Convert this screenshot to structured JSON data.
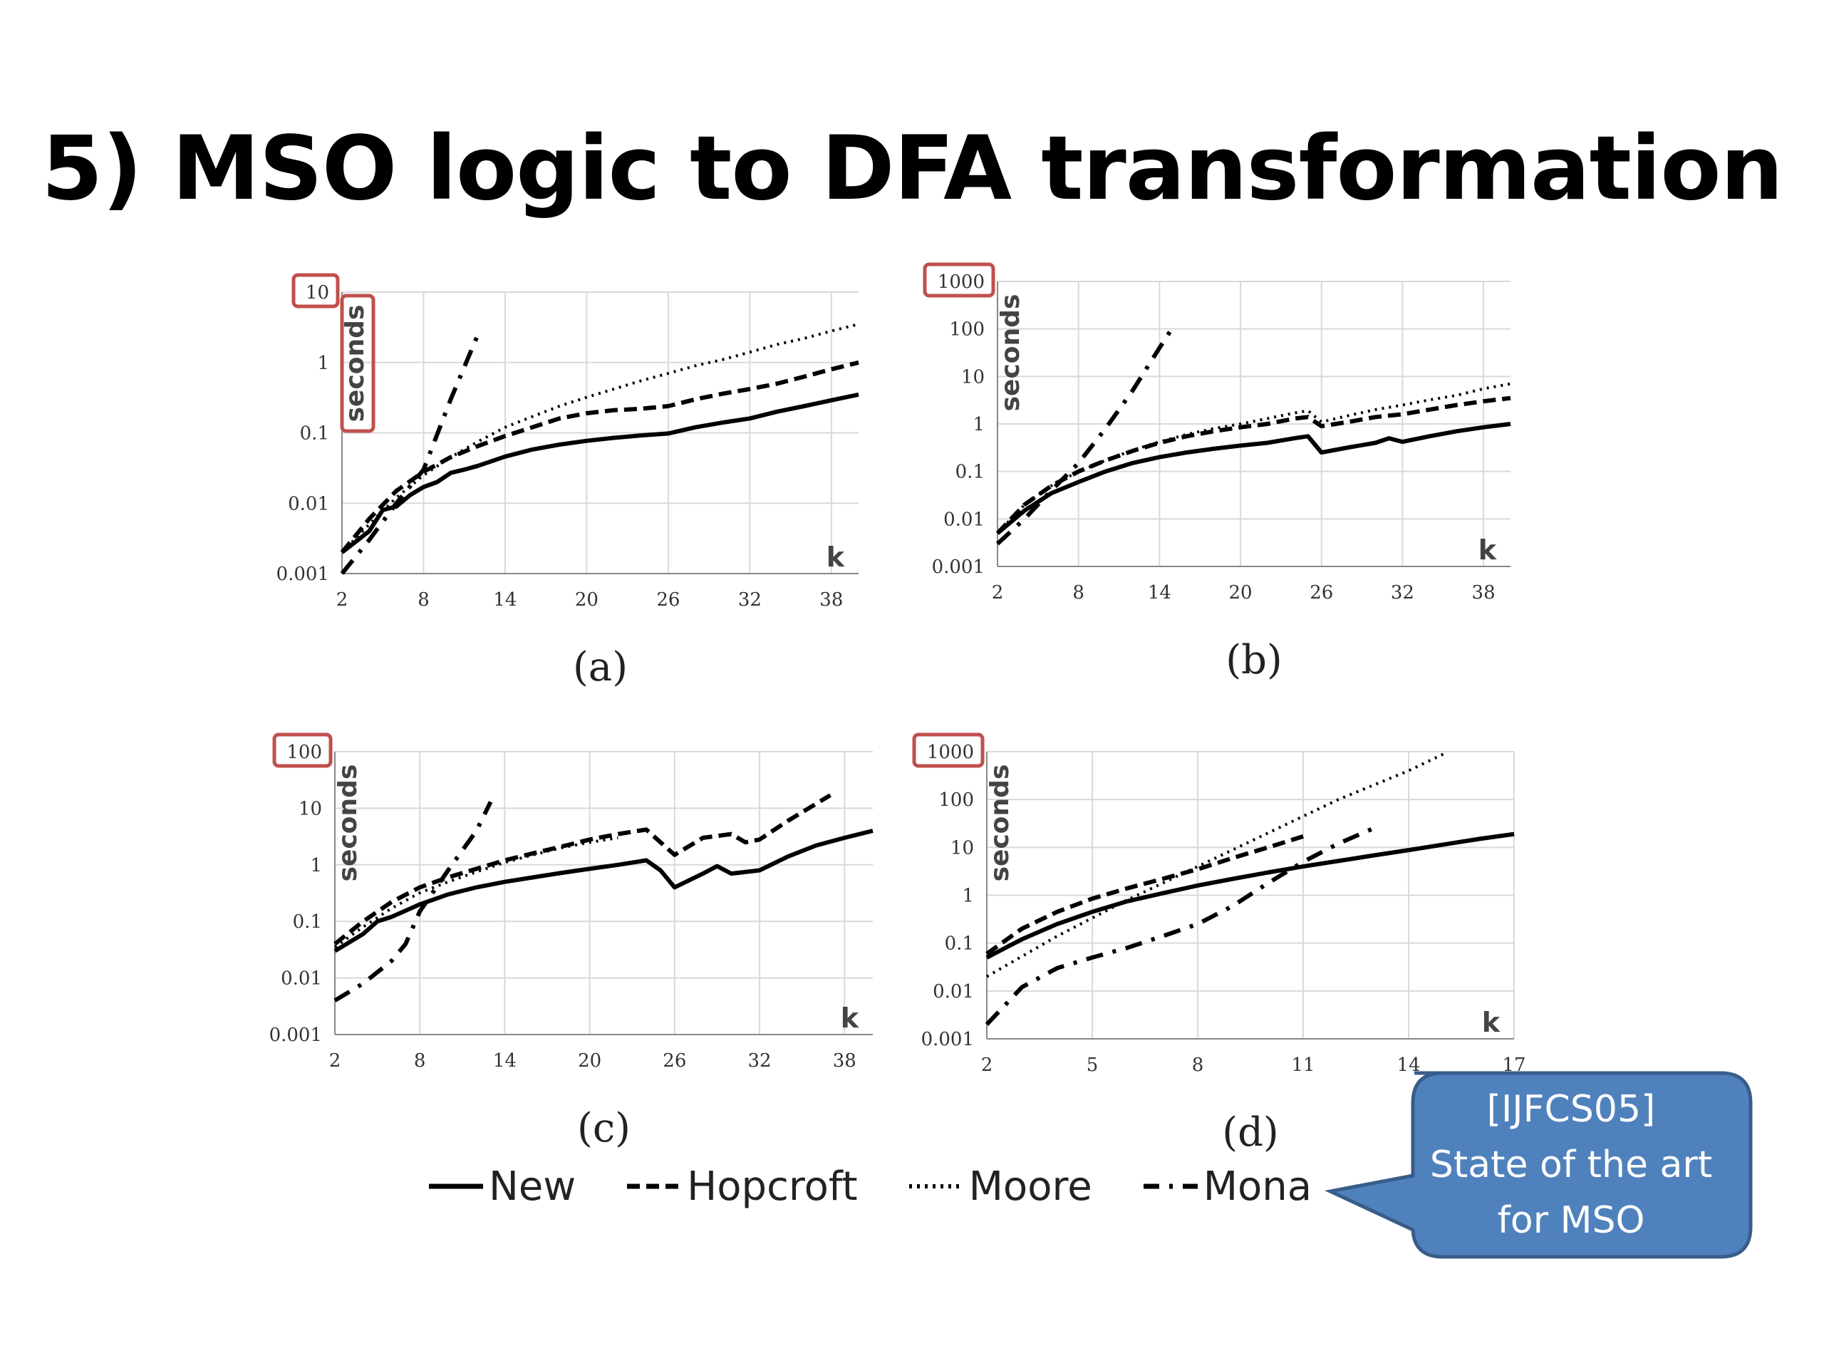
{
  "slide": {
    "title": "5) MSO logic to DFA transformation"
  },
  "legend": [
    {
      "label": "New",
      "style": "solid"
    },
    {
      "label": "Hopcroft",
      "style": "dashed"
    },
    {
      "label": "Moore",
      "style": "dotted"
    },
    {
      "label": "Mona",
      "style": "dashdot"
    }
  ],
  "callout": {
    "lines": [
      "[IJFCS05]",
      "State of the art",
      "for MSO"
    ],
    "color": "#4f81bd",
    "border": "#385d8a"
  },
  "highlight_color": "#c0504d",
  "chart_data": [
    {
      "type": "line",
      "caption": "(a)",
      "ylabel": "seconds",
      "xlabel": "k",
      "yscale": "log",
      "ylim": [
        0.001,
        10
      ],
      "xlim": [
        2,
        40
      ],
      "xticks": [
        "2",
        "8",
        "14",
        "20",
        "26",
        "32",
        "38"
      ],
      "yticks": [
        "0.001",
        "0.01",
        "0.1",
        "1",
        "10"
      ],
      "highlight_top_tick": true,
      "highlight_ylabel": true,
      "grid": true,
      "series": [
        {
          "name": "New",
          "style": "solid",
          "x": [
            2,
            4,
            5,
            6,
            7,
            8,
            9,
            10,
            11,
            12,
            14,
            16,
            18,
            20,
            22,
            24,
            26,
            28,
            30,
            32,
            34,
            36,
            38,
            40
          ],
          "y": [
            0.002,
            0.004,
            0.008,
            0.009,
            0.013,
            0.017,
            0.02,
            0.027,
            0.03,
            0.034,
            0.046,
            0.058,
            0.068,
            0.077,
            0.085,
            0.092,
            0.098,
            0.12,
            0.14,
            0.16,
            0.2,
            0.24,
            0.29,
            0.35
          ]
        },
        {
          "name": "Hopcroft",
          "style": "dashed",
          "x": [
            2,
            4,
            6,
            8,
            10,
            12,
            14,
            16,
            18,
            20,
            22,
            24,
            26,
            28,
            30,
            32,
            34,
            36,
            38,
            40
          ],
          "y": [
            0.002,
            0.006,
            0.015,
            0.028,
            0.045,
            0.065,
            0.09,
            0.12,
            0.16,
            0.19,
            0.21,
            0.22,
            0.24,
            0.3,
            0.36,
            0.42,
            0.5,
            0.63,
            0.8,
            1.0
          ]
        },
        {
          "name": "Moore",
          "style": "dotted",
          "x": [
            2,
            4,
            6,
            8,
            10,
            12,
            14,
            16,
            18,
            20,
            22,
            24,
            26,
            28,
            30,
            32,
            34,
            36,
            38,
            40
          ],
          "y": [
            0.002,
            0.005,
            0.012,
            0.025,
            0.045,
            0.075,
            0.12,
            0.17,
            0.24,
            0.32,
            0.42,
            0.55,
            0.7,
            0.9,
            1.1,
            1.4,
            1.8,
            2.2,
            2.8,
            3.5
          ]
        },
        {
          "name": "Mona",
          "style": "dashdot",
          "x": [
            2,
            4,
            6,
            8,
            10,
            12
          ],
          "y": [
            0.001,
            0.003,
            0.01,
            0.03,
            0.3,
            2.5
          ]
        }
      ]
    },
    {
      "type": "line",
      "caption": "(b)",
      "ylabel": "seconds",
      "xlabel": "k",
      "yscale": "log",
      "ylim": [
        0.001,
        1000
      ],
      "xlim": [
        2,
        40
      ],
      "xticks": [
        "2",
        "8",
        "14",
        "20",
        "26",
        "32",
        "38"
      ],
      "yticks": [
        "0.001",
        "0.01",
        "0.1",
        "1",
        "10",
        "100",
        "1000"
      ],
      "highlight_top_tick": true,
      "highlight_ylabel": false,
      "grid": true,
      "series": [
        {
          "name": "New",
          "style": "solid",
          "x": [
            2,
            4,
            6,
            8,
            10,
            12,
            14,
            16,
            18,
            20,
            22,
            24,
            25,
            26,
            28,
            30,
            31,
            32,
            34,
            36,
            38,
            40
          ],
          "y": [
            0.005,
            0.015,
            0.035,
            0.06,
            0.1,
            0.15,
            0.2,
            0.25,
            0.3,
            0.35,
            0.4,
            0.5,
            0.55,
            0.25,
            0.32,
            0.4,
            0.5,
            0.42,
            0.55,
            0.7,
            0.85,
            1.0
          ]
        },
        {
          "name": "Hopcroft",
          "style": "dashed",
          "x": [
            2,
            4,
            6,
            8,
            10,
            12,
            14,
            16,
            18,
            20,
            22,
            24,
            25,
            26,
            28,
            30,
            32,
            34,
            36,
            38,
            40
          ],
          "y": [
            0.005,
            0.02,
            0.05,
            0.1,
            0.17,
            0.27,
            0.4,
            0.55,
            0.7,
            0.85,
            1.0,
            1.3,
            1.4,
            0.9,
            1.1,
            1.4,
            1.6,
            2.0,
            2.5,
            3.0,
            3.5
          ]
        },
        {
          "name": "Moore",
          "style": "dotted",
          "x": [
            2,
            4,
            6,
            8,
            10,
            12,
            14,
            16,
            18,
            20,
            22,
            24,
            25,
            26,
            28,
            30,
            32,
            34,
            36,
            38,
            40
          ],
          "y": [
            0.005,
            0.02,
            0.05,
            0.1,
            0.17,
            0.28,
            0.42,
            0.6,
            0.8,
            1.0,
            1.3,
            1.7,
            1.9,
            1.1,
            1.5,
            2.0,
            2.5,
            3.2,
            4.0,
            5.5,
            7.0
          ]
        },
        {
          "name": "Mona",
          "style": "dashdot",
          "x": [
            2,
            4,
            6,
            8,
            10,
            12,
            14,
            15
          ],
          "y": [
            0.003,
            0.01,
            0.04,
            0.15,
            0.8,
            5,
            40,
            110
          ]
        }
      ]
    },
    {
      "type": "line",
      "caption": "(c)",
      "ylabel": "seconds",
      "xlabel": "k",
      "yscale": "log",
      "ylim": [
        0.001,
        100
      ],
      "xlim": [
        2,
        40
      ],
      "xticks": [
        "2",
        "8",
        "14",
        "20",
        "26",
        "32",
        "38"
      ],
      "yticks": [
        "0.001",
        "0.01",
        "0.1",
        "1",
        "10",
        "100"
      ],
      "highlight_top_tick": true,
      "highlight_ylabel": false,
      "grid": true,
      "series": [
        {
          "name": "New",
          "style": "solid",
          "x": [
            2,
            4,
            5,
            6,
            8,
            10,
            12,
            14,
            16,
            18,
            20,
            22,
            24,
            25,
            26,
            28,
            29,
            30,
            32,
            34,
            36,
            38,
            40
          ],
          "y": [
            0.03,
            0.06,
            0.1,
            0.12,
            0.2,
            0.3,
            0.4,
            0.5,
            0.6,
            0.72,
            0.85,
            1.0,
            1.2,
            0.8,
            0.4,
            0.7,
            0.95,
            0.7,
            0.8,
            1.4,
            2.2,
            3.0,
            4.0
          ]
        },
        {
          "name": "Hopcroft",
          "style": "dashed",
          "x": [
            2,
            4,
            6,
            8,
            10,
            12,
            14,
            16,
            18,
            20,
            22,
            24,
            26,
            28,
            30,
            31,
            32,
            34,
            36,
            37
          ],
          "y": [
            0.04,
            0.1,
            0.22,
            0.4,
            0.6,
            0.85,
            1.2,
            1.6,
            2.1,
            2.8,
            3.5,
            4.2,
            1.5,
            3.0,
            3.5,
            2.5,
            2.8,
            6.0,
            12,
            17
          ]
        },
        {
          "name": "Moore",
          "style": "dotted",
          "x": [
            2,
            4,
            6,
            8,
            10,
            12,
            14,
            16,
            18,
            20,
            22
          ],
          "y": [
            0.035,
            0.08,
            0.17,
            0.32,
            0.5,
            0.75,
            1.1,
            1.5,
            2.0,
            2.5,
            3.0
          ]
        },
        {
          "name": "Mona",
          "style": "dashdot",
          "x": [
            2,
            4,
            6,
            7,
            8,
            10,
            12,
            13
          ],
          "y": [
            0.004,
            0.008,
            0.02,
            0.04,
            0.15,
            0.8,
            4,
            13
          ]
        }
      ]
    },
    {
      "type": "line",
      "caption": "(d)",
      "ylabel": "seconds",
      "xlabel": "k",
      "yscale": "log",
      "ylim": [
        0.001,
        1000
      ],
      "xlim": [
        2,
        17
      ],
      "xticks": [
        "2",
        "5",
        "8",
        "11",
        "14",
        "17"
      ],
      "yticks": [
        "0.001",
        "0.01",
        "0.1",
        "1",
        "10",
        "100",
        "1000"
      ],
      "highlight_top_tick": true,
      "highlight_ylabel": false,
      "grid": true,
      "series": [
        {
          "name": "New",
          "style": "solid",
          "x": [
            2,
            3,
            4,
            5,
            6,
            7,
            8,
            9,
            10,
            11,
            12,
            13,
            14,
            15,
            16,
            17
          ],
          "y": [
            0.05,
            0.12,
            0.25,
            0.45,
            0.75,
            1.1,
            1.6,
            2.2,
            3.0,
            4.0,
            5.2,
            6.8,
            8.8,
            11.5,
            15,
            19
          ]
        },
        {
          "name": "Hopcroft",
          "style": "dashed",
          "x": [
            2,
            3,
            4,
            5,
            6,
            7,
            8,
            9,
            10,
            11
          ],
          "y": [
            0.06,
            0.2,
            0.45,
            0.85,
            1.4,
            2.2,
            3.5,
            6.0,
            10,
            17
          ]
        },
        {
          "name": "Moore",
          "style": "dotted",
          "x": [
            2,
            4,
            6,
            8,
            10,
            12,
            14,
            15
          ],
          "y": [
            0.02,
            0.14,
            0.8,
            4,
            20,
            100,
            400,
            900
          ]
        },
        {
          "name": "Mona",
          "style": "dashdot",
          "x": [
            2,
            3,
            4,
            5,
            6,
            7,
            8,
            9,
            10,
            11,
            12,
            13
          ],
          "y": [
            0.002,
            0.012,
            0.03,
            0.05,
            0.08,
            0.14,
            0.25,
            0.6,
            1.8,
            5,
            12,
            25
          ]
        }
      ]
    }
  ]
}
